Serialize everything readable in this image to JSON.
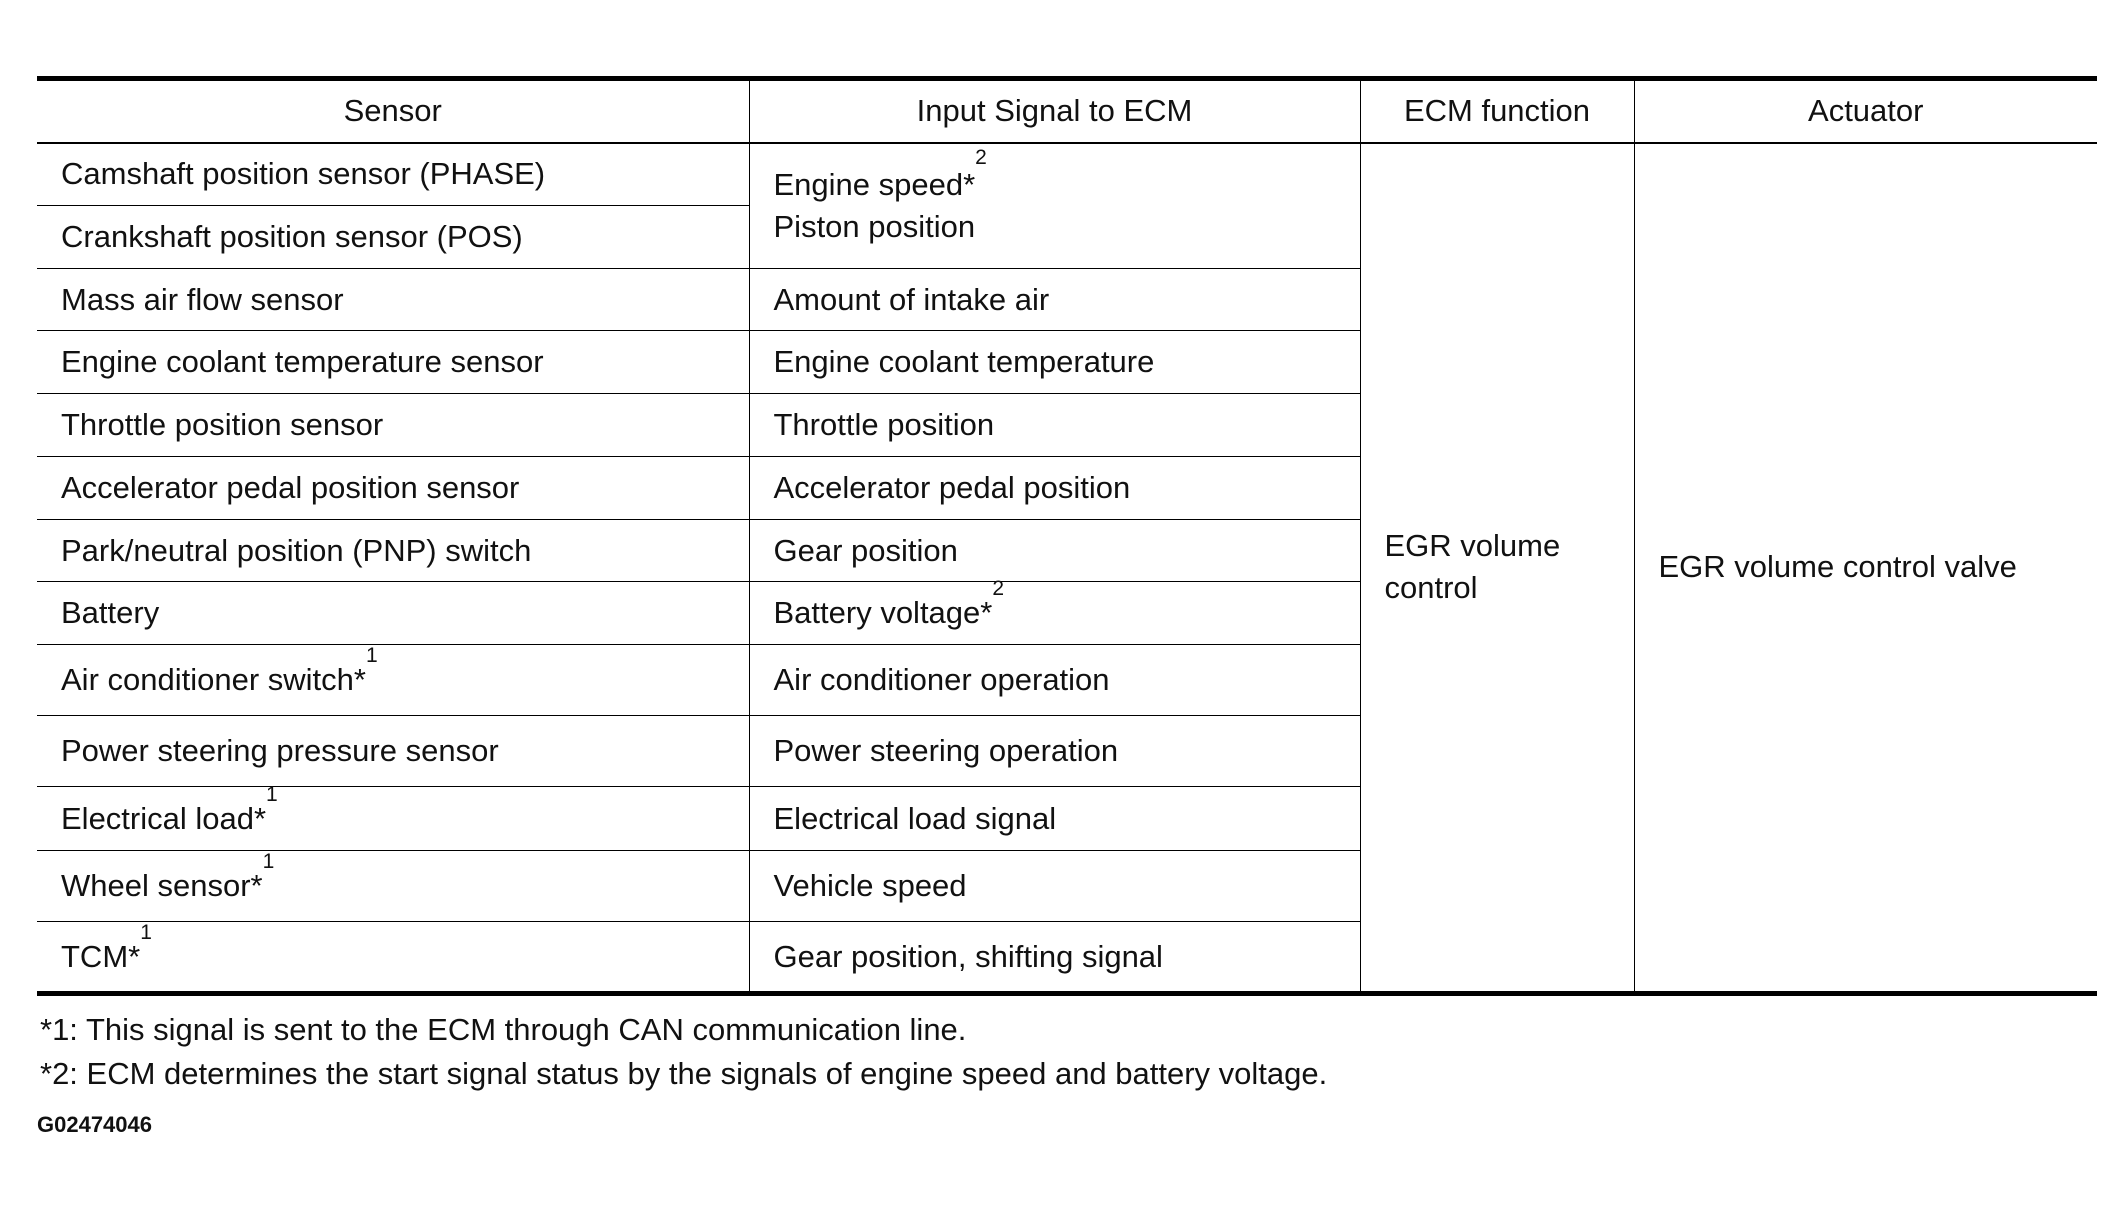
{
  "headers": [
    "Sensor",
    "Input Signal to ECM",
    "ECM function",
    "Actuator"
  ],
  "rows": [
    {
      "sensor": "Camshaft position sensor (PHASE)",
      "sensor_note": ""
    },
    {
      "sensor": "Crankshaft position sensor (POS)",
      "sensor_note": ""
    },
    {
      "sensor": "Mass air flow sensor",
      "sensor_note": "",
      "signal": "Amount of intake air",
      "signal_note": ""
    },
    {
      "sensor": "Engine coolant temperature sensor",
      "sensor_note": "",
      "signal": "Engine coolant temperature",
      "signal_note": ""
    },
    {
      "sensor": "Throttle position sensor",
      "sensor_note": "",
      "signal": "Throttle position",
      "signal_note": ""
    },
    {
      "sensor": "Accelerator pedal position sensor",
      "sensor_note": "",
      "signal": "Accelerator pedal position",
      "signal_note": ""
    },
    {
      "sensor": "Park/neutral position (PNP) switch",
      "sensor_note": "",
      "signal": "Gear position",
      "signal_note": ""
    },
    {
      "sensor": "Battery",
      "sensor_note": "",
      "signal": "Battery voltage*",
      "signal_note": "2"
    },
    {
      "sensor": "Air conditioner switch*",
      "sensor_note": "1",
      "signal": "Air conditioner operation",
      "signal_note": ""
    },
    {
      "sensor": "Power steering pressure sensor",
      "sensor_note": "",
      "signal": "Power steering operation",
      "signal_note": ""
    },
    {
      "sensor": "Electrical load*",
      "sensor_note": "1",
      "signal": "Electrical load signal",
      "signal_note": ""
    },
    {
      "sensor": "Wheel sensor*",
      "sensor_note": "1",
      "signal": "Vehicle speed",
      "signal_note": ""
    },
    {
      "sensor": "TCM*",
      "sensor_note": "1",
      "signal": "Gear position, shifting signal",
      "signal_note": ""
    }
  ],
  "merged_signal": {
    "line1": "Engine speed*",
    "line1_note": "2",
    "line2": "Piston position"
  },
  "ecm_function": "EGR volume control",
  "actuator": "EGR volume control valve",
  "footnotes": [
    "*1: This signal is sent to the ECM through CAN communication line.",
    "*2: ECM determines the start signal status by the signals of engine speed and battery voltage."
  ],
  "figure_code": "G02474046"
}
